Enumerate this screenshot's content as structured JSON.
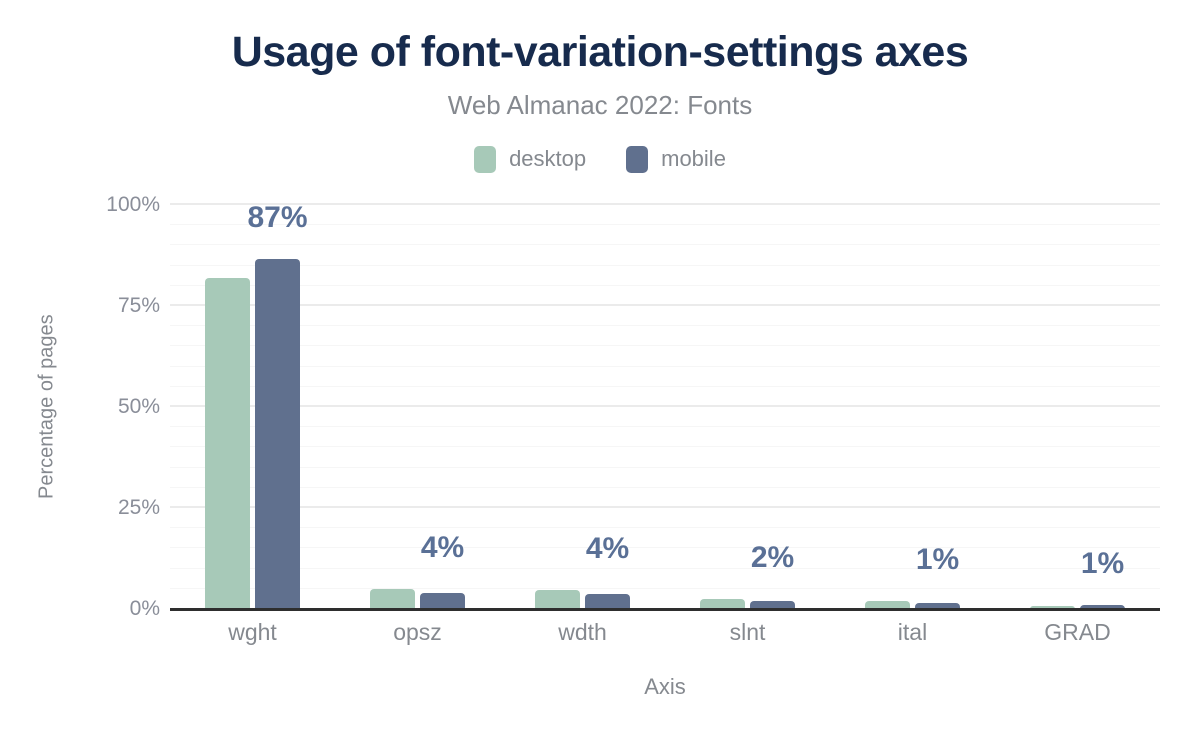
{
  "page": {
    "background": "#ffffff"
  },
  "chart_data": {
    "type": "bar",
    "title": "Usage of font-variation-settings axes",
    "subtitle": "Web Almanac 2022: Fonts",
    "xlabel": "Axis",
    "ylabel": "Percentage of pages",
    "categories": [
      "wght",
      "opsz",
      "wdth",
      "slnt",
      "ital",
      "GRAD"
    ],
    "series": [
      {
        "name": "desktop",
        "color": "#a7c9b8",
        "values": [
          82,
          5.0,
          4.6,
          2.5,
          2.0,
          0.8
        ]
      },
      {
        "name": "mobile",
        "color": "#60708e",
        "values": [
          86.6,
          4.0,
          3.6,
          2.0,
          1.4,
          1.0
        ]
      }
    ],
    "bar_labels": {
      "values": [
        "87%",
        "4%",
        "4%",
        "2%",
        "1%",
        "1%"
      ],
      "applies_to": "mobile",
      "color": "#5a7096"
    },
    "y_ticks": [
      {
        "label": "0%",
        "value": 0
      },
      {
        "label": "25%",
        "value": 25
      },
      {
        "label": "50%",
        "value": 50
      },
      {
        "label": "75%",
        "value": 75
      },
      {
        "label": "100%",
        "value": 100
      }
    ],
    "ylim": [
      0,
      100
    ],
    "grid": {
      "minor_step": 5,
      "major_step": 25,
      "minor_color": "#f6f6f6",
      "major_color": "#ebebeb"
    },
    "axis_line_color": "#2e2e2e",
    "legend_position": "top",
    "text_colors": {
      "title": "#172b4d",
      "subtitle": "#85898f",
      "ticks": "#8a8e99"
    }
  }
}
